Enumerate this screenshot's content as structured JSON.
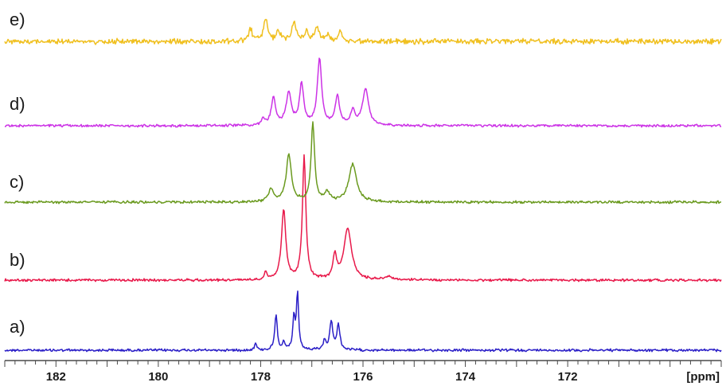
{
  "chart_data": {
    "type": "line",
    "x_unit": "[ppm]",
    "x_axis_reversed": true,
    "xlim": [
      183.0,
      169.0
    ],
    "xticks": [
      182,
      180,
      178,
      176,
      174,
      172
    ],
    "x_tick_labels": [
      "182",
      "180",
      "178",
      "176",
      "174",
      "172"
    ],
    "minor_tick_step": 0.2,
    "grid": false,
    "legend": "none",
    "series": [
      {
        "name": "a)",
        "color": "#2b1fc7",
        "peaks": [
          {
            "ppm": 178.1,
            "height": 0.12,
            "width": 0.025
          },
          {
            "ppm": 177.7,
            "height": 0.62,
            "width": 0.03
          },
          {
            "ppm": 177.55,
            "height": 0.12,
            "width": 0.03
          },
          {
            "ppm": 177.35,
            "height": 0.56,
            "width": 0.025
          },
          {
            "ppm": 177.28,
            "height": 1.0,
            "width": 0.025
          },
          {
            "ppm": 176.75,
            "height": 0.16,
            "width": 0.03
          },
          {
            "ppm": 176.62,
            "height": 0.5,
            "width": 0.035
          },
          {
            "ppm": 176.48,
            "height": 0.44,
            "width": 0.035
          }
        ]
      },
      {
        "name": "b)",
        "color": "#e8194a",
        "peaks": [
          {
            "ppm": 177.9,
            "height": 0.1,
            "width": 0.03
          },
          {
            "ppm": 177.55,
            "height": 0.88,
            "width": 0.05
          },
          {
            "ppm": 177.15,
            "height": 1.55,
            "width": 0.04
          },
          {
            "ppm": 176.55,
            "height": 0.3,
            "width": 0.04
          },
          {
            "ppm": 176.3,
            "height": 0.64,
            "width": 0.09
          },
          {
            "ppm": 175.5,
            "height": 0.04,
            "width": 0.1
          }
        ]
      },
      {
        "name": "c)",
        "color": "#6a9a1f",
        "peaks": [
          {
            "ppm": 177.8,
            "height": 0.16,
            "width": 0.06
          },
          {
            "ppm": 177.45,
            "height": 0.62,
            "width": 0.06
          },
          {
            "ppm": 176.98,
            "height": 1.05,
            "width": 0.04
          },
          {
            "ppm": 176.7,
            "height": 0.12,
            "width": 0.06
          },
          {
            "ppm": 176.2,
            "height": 0.5,
            "width": 0.09
          }
        ]
      },
      {
        "name": "d)",
        "color": "#cc33e6",
        "peaks": [
          {
            "ppm": 177.95,
            "height": 0.08,
            "width": 0.04
          },
          {
            "ppm": 177.75,
            "height": 0.36,
            "width": 0.05
          },
          {
            "ppm": 177.45,
            "height": 0.42,
            "width": 0.06
          },
          {
            "ppm": 177.2,
            "height": 0.54,
            "width": 0.05
          },
          {
            "ppm": 176.85,
            "height": 0.88,
            "width": 0.05
          },
          {
            "ppm": 176.5,
            "height": 0.38,
            "width": 0.05
          },
          {
            "ppm": 176.2,
            "height": 0.18,
            "width": 0.05
          },
          {
            "ppm": 175.95,
            "height": 0.48,
            "width": 0.07
          }
        ]
      },
      {
        "name": "e)",
        "color": "#f0c020",
        "peaks": [
          {
            "ppm": 178.2,
            "height": 0.28,
            "width": 0.04
          },
          {
            "ppm": 177.9,
            "height": 0.5,
            "width": 0.05
          },
          {
            "ppm": 177.65,
            "height": 0.26,
            "width": 0.04
          },
          {
            "ppm": 177.35,
            "height": 0.44,
            "width": 0.05
          },
          {
            "ppm": 177.1,
            "height": 0.2,
            "width": 0.04
          },
          {
            "ppm": 176.9,
            "height": 0.34,
            "width": 0.05
          },
          {
            "ppm": 176.7,
            "height": 0.16,
            "width": 0.04
          },
          {
            "ppm": 176.45,
            "height": 0.24,
            "width": 0.04
          }
        ]
      }
    ]
  }
}
